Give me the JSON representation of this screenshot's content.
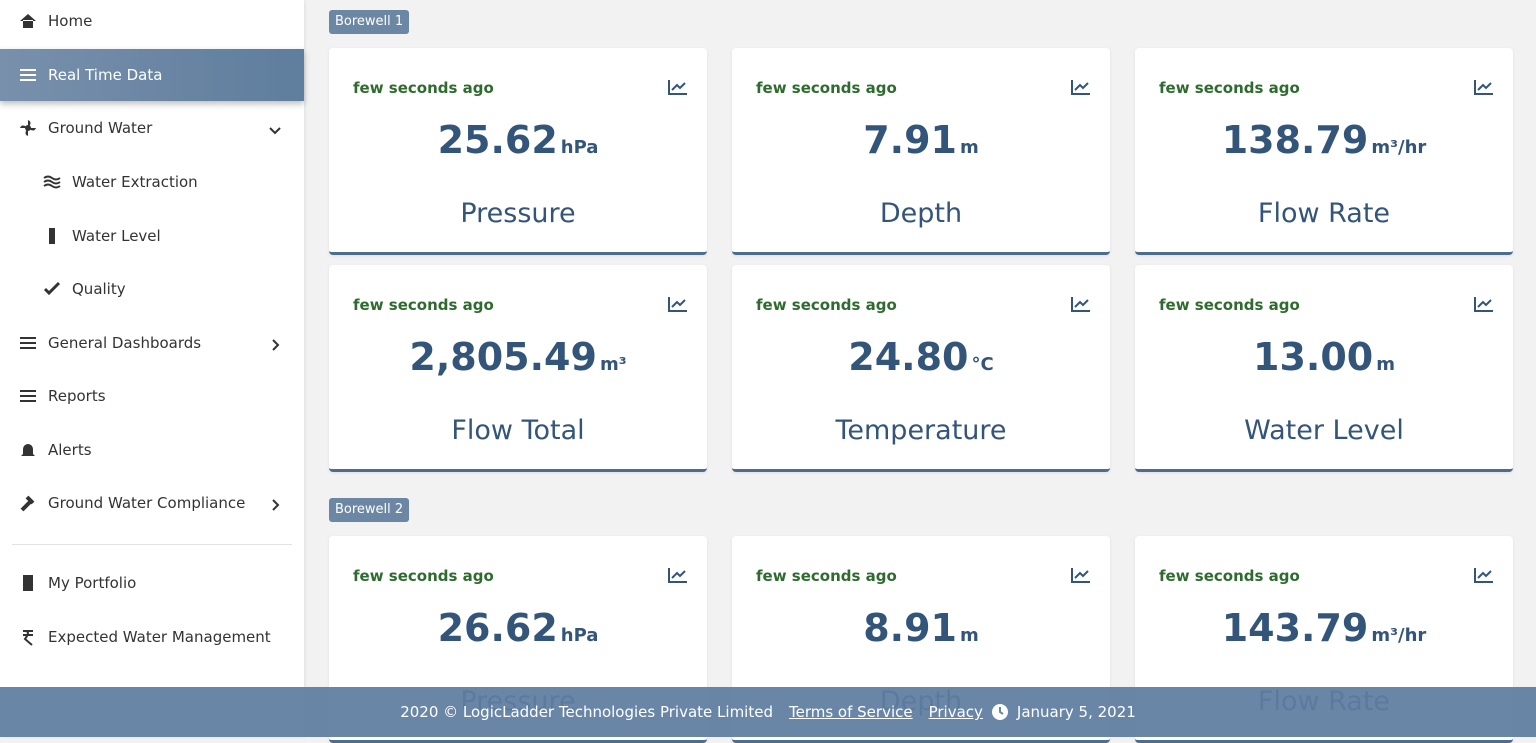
{
  "sidebar": {
    "items": [
      {
        "label": "Home"
      },
      {
        "label": "Real Time Data",
        "active": true
      },
      {
        "label": "Ground Water"
      },
      {
        "label": "Water Extraction"
      },
      {
        "label": "Water Level"
      },
      {
        "label": "Quality"
      },
      {
        "label": "General Dashboards"
      },
      {
        "label": "Reports"
      },
      {
        "label": "Alerts"
      },
      {
        "label": "Ground Water Compliance"
      },
      {
        "label": "My Portfolio"
      },
      {
        "label": "Expected Water Management"
      }
    ]
  },
  "sections": [
    {
      "label": "Borewell 1",
      "cards": [
        {
          "time": "few seconds ago",
          "value": "25.62",
          "unit": "hPa",
          "label": "Pressure"
        },
        {
          "time": "few seconds ago",
          "value": "7.91",
          "unit": "m",
          "label": "Depth"
        },
        {
          "time": "few seconds ago",
          "value": "138.79",
          "unit": "m³/hr",
          "label": "Flow Rate"
        },
        {
          "time": "few seconds ago",
          "value": "2,805.49",
          "unit": "m³",
          "label": "Flow Total"
        },
        {
          "time": "few seconds ago",
          "value": "24.80",
          "unit": "°C",
          "label": "Temperature"
        },
        {
          "time": "few seconds ago",
          "value": "13.00",
          "unit": "m",
          "label": "Water Level"
        }
      ]
    },
    {
      "label": "Borewell 2",
      "cards": [
        {
          "time": "few seconds ago",
          "value": "26.62",
          "unit": "hPa",
          "label": "Pressure"
        },
        {
          "time": "few seconds ago",
          "value": "8.91",
          "unit": "m",
          "label": "Depth"
        },
        {
          "time": "few seconds ago",
          "value": "143.79",
          "unit": "m³/hr",
          "label": "Flow Rate"
        }
      ]
    }
  ],
  "footer": {
    "copyright": "2020 © LogicLadder Technologies Private Limited",
    "terms": "Terms of Service",
    "privacy": "Privacy",
    "date": "January 5, 2021"
  }
}
